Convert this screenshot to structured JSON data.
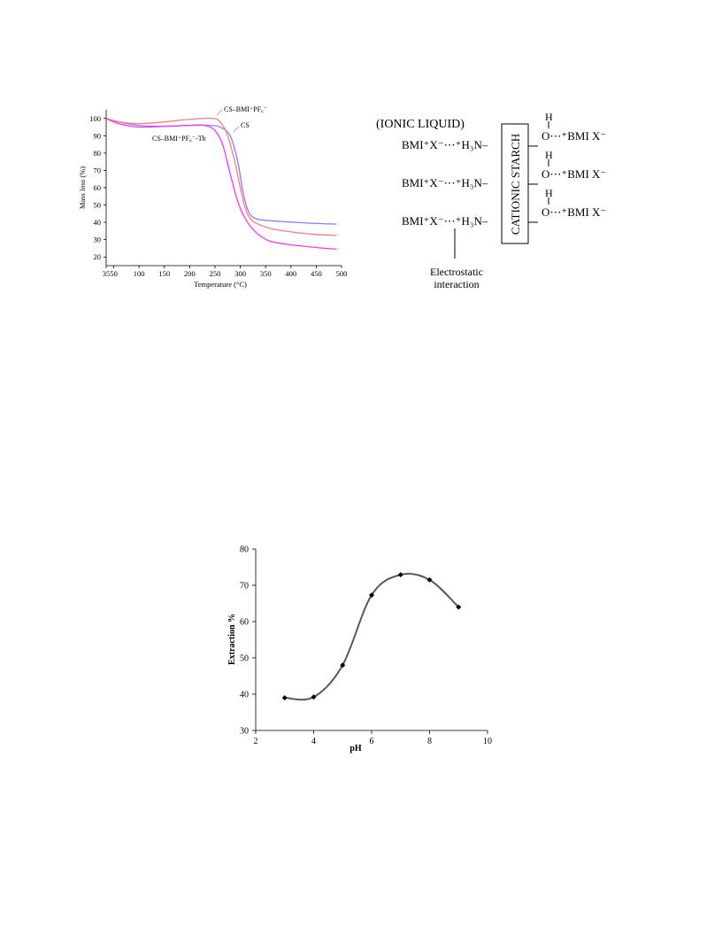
{
  "chart_data": [
    {
      "type": "line",
      "title": "",
      "xlabel": "Temperature (°C)",
      "ylabel": "Mass loss (%)",
      "xlim": [
        35,
        500
      ],
      "ylim": [
        15,
        105
      ],
      "xticks": [
        35,
        50,
        100,
        150,
        200,
        250,
        300,
        350,
        400,
        450,
        500
      ],
      "yticks": [
        20,
        30,
        40,
        50,
        60,
        70,
        80,
        90,
        100
      ],
      "grid": false,
      "series": [
        {
          "name": "CS",
          "color": "#8080ff",
          "x": [
            35,
            60,
            100,
            150,
            200,
            240,
            260,
            280,
            295,
            305,
            315,
            325,
            340,
            380,
            440,
            490
          ],
          "y": [
            100,
            98,
            96,
            95.5,
            96,
            96,
            95,
            90,
            75,
            58,
            47,
            43,
            41.5,
            40.5,
            39.5,
            39
          ]
        },
        {
          "name": "CS–BMI⁺PF₆⁻",
          "color": "#ff7a7a",
          "x": [
            35,
            60,
            100,
            150,
            200,
            245,
            260,
            275,
            290,
            300,
            310,
            320,
            335,
            360,
            400,
            450,
            490
          ],
          "y": [
            100,
            98,
            97,
            98,
            99.5,
            100,
            98,
            90,
            74,
            60,
            48,
            42,
            39,
            36.5,
            34.5,
            33,
            32.5
          ]
        },
        {
          "name": "CS–BMI⁺PF₆⁻-Th",
          "color": "#ff33ff",
          "x": [
            35,
            60,
            100,
            150,
            200,
            230,
            250,
            265,
            280,
            295,
            310,
            325,
            340,
            360,
            400,
            450,
            490
          ],
          "y": [
            100,
            97,
            95,
            95.5,
            96,
            96,
            93,
            85,
            68,
            52,
            42,
            36,
            32,
            29,
            27,
            25.5,
            24.5
          ]
        }
      ],
      "annotations": [
        "CS–BMI⁺PF₆⁻",
        "CS",
        "CS–BMI⁺PF₆⁻-Th"
      ]
    },
    {
      "type": "line",
      "title": "",
      "xlabel": "pH",
      "ylabel": "Extraction %",
      "xlim": [
        2,
        10
      ],
      "ylim": [
        30,
        80
      ],
      "xticks": [
        2,
        4,
        6,
        8,
        10
      ],
      "yticks": [
        30,
        40,
        50,
        60,
        70,
        80
      ],
      "grid": false,
      "series": [
        {
          "color": "#595959",
          "x": [
            3,
            4,
            5,
            6,
            7,
            8,
            9
          ],
          "y": [
            39,
            39.2,
            48,
            67.3,
            72.9,
            71.5,
            64
          ]
        }
      ]
    }
  ],
  "scheme": {
    "header": "(IONIC LIQUID)",
    "rows": [
      {
        "left": "BMI⁺X⁻⋯⁺H₃N–",
        "right": "O⋯⁺BMI  X⁻"
      },
      {
        "left": "BMI⁺X⁻⋯⁺H₃N–",
        "right": "O⋯⁺BMI  X⁻"
      },
      {
        "left": "BMI⁺X⁻⋯⁺H₃N–",
        "right": "O⋯⁺BMI  X⁻"
      }
    ],
    "hydrogen": "H",
    "box_label": "CATIONIC  STARCH",
    "caption_line1": "Electrostatic",
    "caption_line2": "interaction"
  }
}
